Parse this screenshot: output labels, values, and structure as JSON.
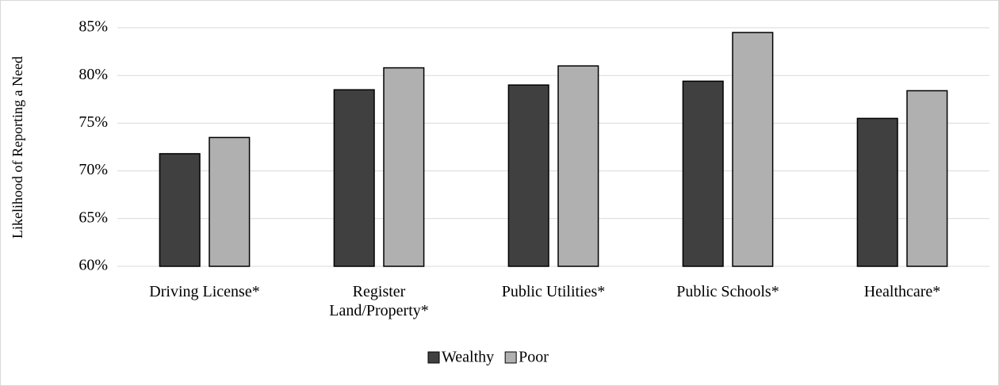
{
  "chart_data": {
    "type": "bar",
    "y_axis_label": "Likelihood of Reporting a Need",
    "categories": [
      "Driving License*",
      "Register Land/Property*",
      "Public Utilities*",
      "Public Schools*",
      "Healthcare*"
    ],
    "series": [
      {
        "name": "Wealthy",
        "color": "#404040",
        "values": [
          71.8,
          78.5,
          79.0,
          79.4,
          75.5
        ]
      },
      {
        "name": "Poor",
        "color": "#b0b0b0",
        "values": [
          73.5,
          80.8,
          81.0,
          84.5,
          78.4
        ]
      }
    ],
    "ylim": [
      60,
      85
    ],
    "yticks": [
      {
        "value": 60,
        "label": "60%"
      },
      {
        "value": 65,
        "label": "65%"
      },
      {
        "value": 70,
        "label": "70%"
      },
      {
        "value": 75,
        "label": "75%"
      },
      {
        "value": 80,
        "label": "80%"
      },
      {
        "value": 85,
        "label": "85%"
      }
    ],
    "grid": true,
    "legend": "bottom"
  }
}
